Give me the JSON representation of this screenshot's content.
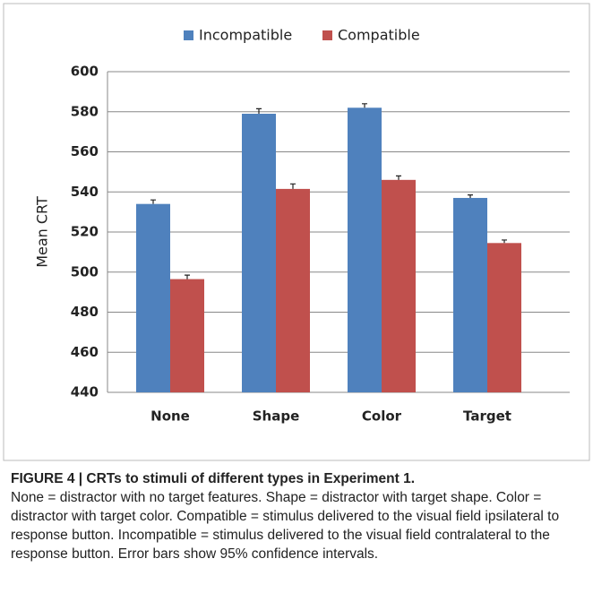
{
  "chart_data": {
    "type": "bar",
    "y_label": "Mean CRT",
    "categories": [
      "None",
      "Shape",
      "Color",
      "Target"
    ],
    "series": [
      {
        "name": "Incompatible",
        "color": "#4f81bd",
        "values": [
          534,
          579,
          582,
          537
        ],
        "errors": [
          2,
          2.5,
          2,
          1.5
        ]
      },
      {
        "name": "Compatible",
        "color": "#c0504d",
        "values": [
          496.5,
          541.5,
          546,
          514.5
        ],
        "errors": [
          2,
          2.5,
          2,
          1.5
        ]
      }
    ],
    "ylim": [
      440,
      600
    ],
    "yticks": [
      440,
      460,
      480,
      500,
      520,
      540,
      560,
      580,
      600
    ],
    "grid": true
  },
  "caption": {
    "title": "FIGURE 4 | CRTs to stimuli of different types in Experiment 1.",
    "body": "None = distractor with no target features. Shape = distractor with target shape. Color = distractor with target color. Compatible = stimulus delivered to the visual field ipsilateral to response button. Incompatible = stimulus delivered to the visual field contralateral to the response button. Error bars show 95% confidence intervals."
  }
}
